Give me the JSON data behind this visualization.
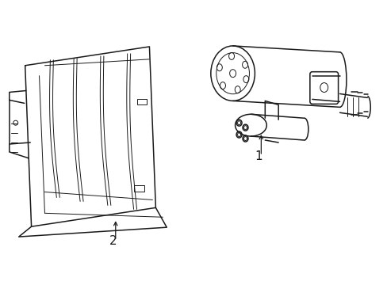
{
  "bg_color": "#ffffff",
  "lc": "#1a1a1a",
  "lw": 1.1,
  "tlw": 0.7,
  "label1": "1",
  "label2": "2",
  "figsize": [
    4.89,
    3.6
  ],
  "dpi": 100
}
